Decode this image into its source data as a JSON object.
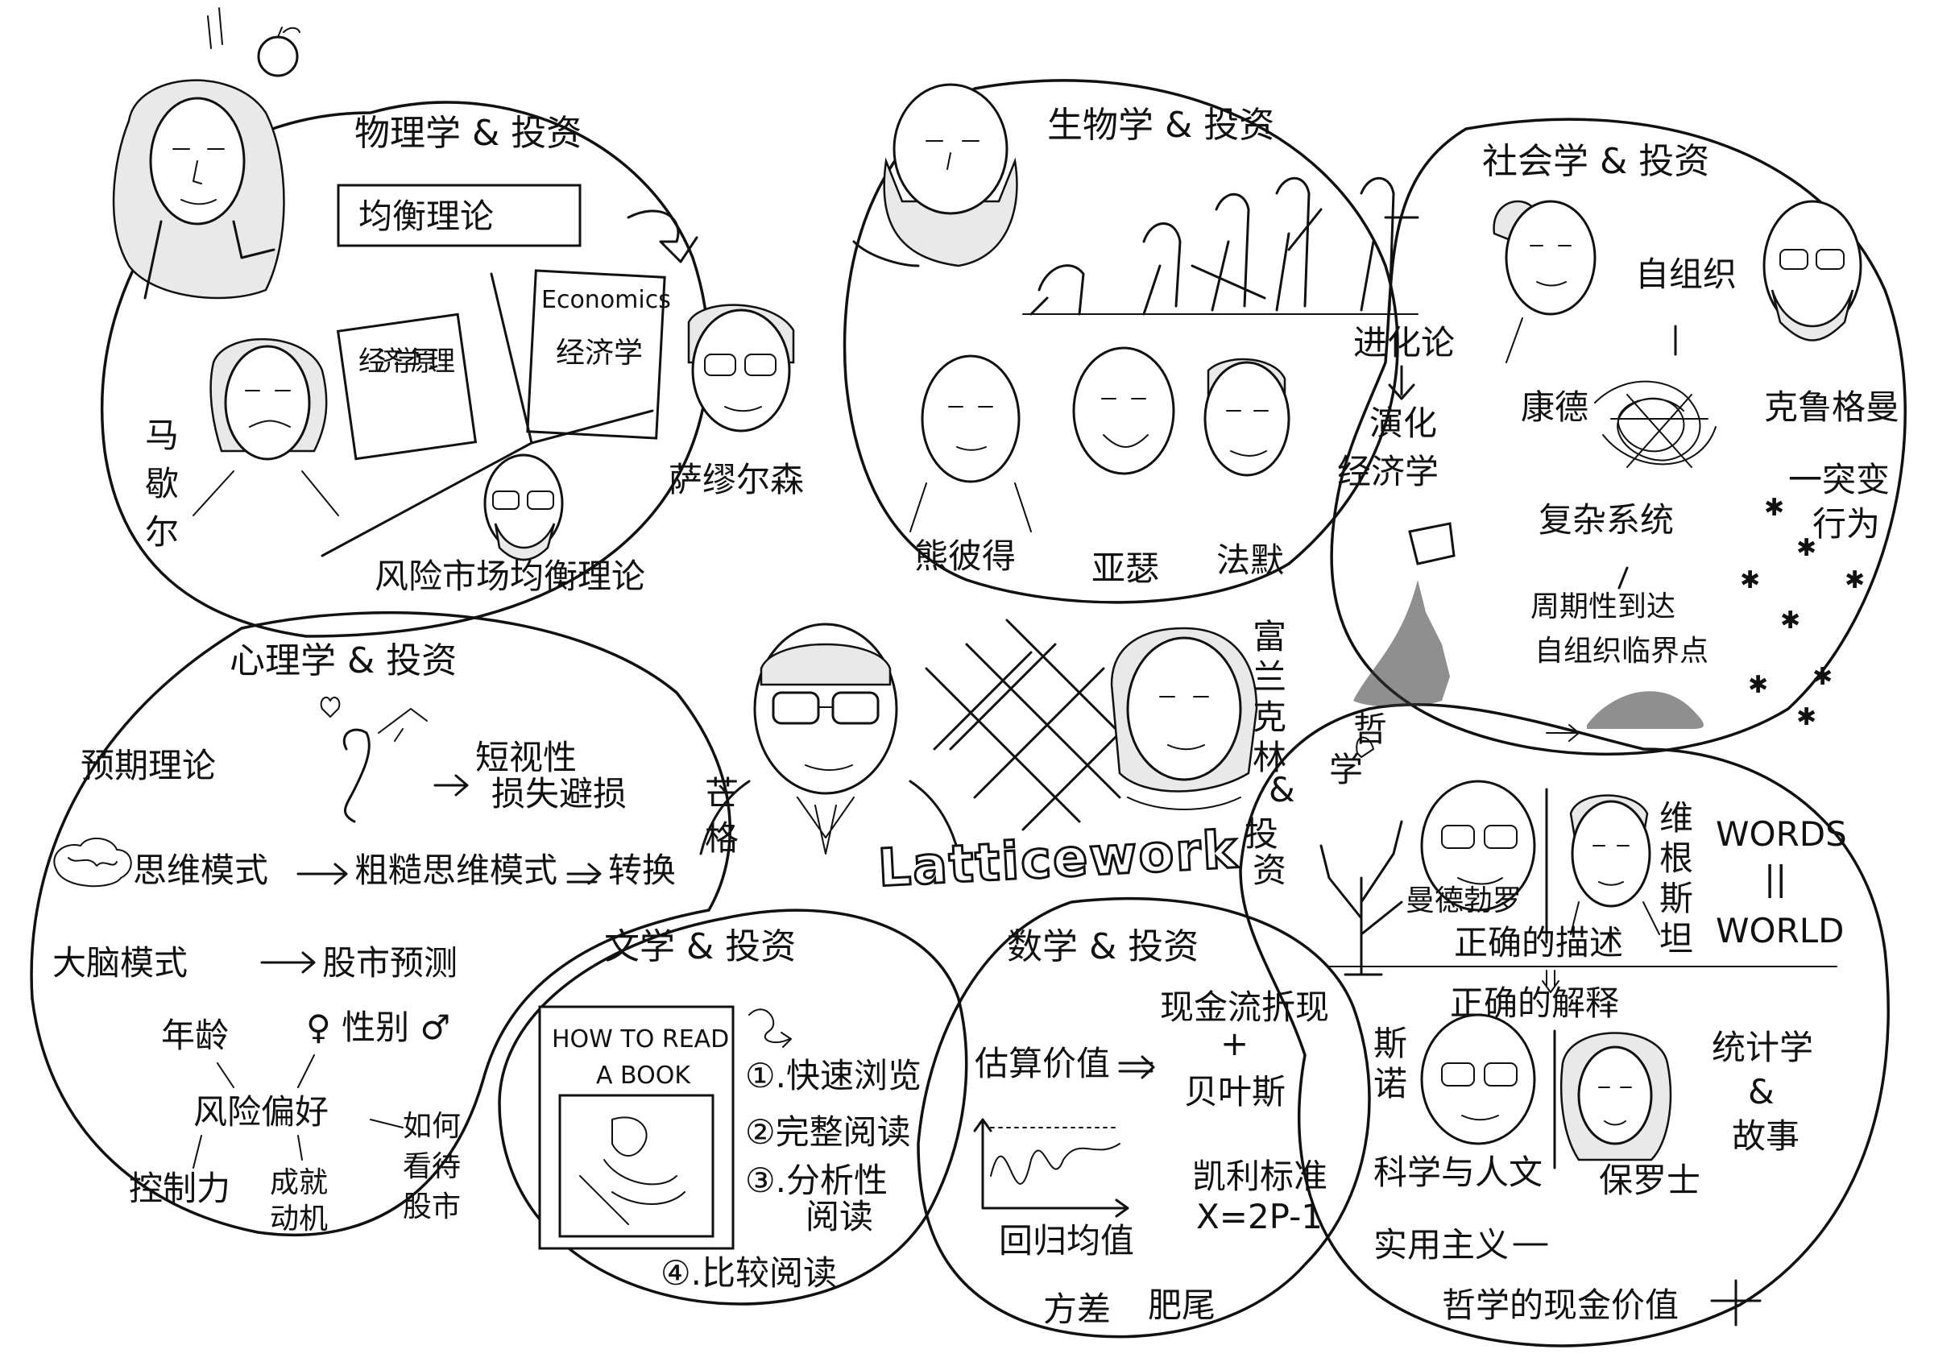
{
  "physics": {
    "title": "物理学 & 投资",
    "equilibrium": "均衡理论",
    "book1": "经济学原理",
    "book2_en": "Economics",
    "book2_cn": "经济学",
    "person_marshall": "马歇尔",
    "person_samuelson": "萨缪尔森",
    "capm": "风险市场均衡理论"
  },
  "biology": {
    "title": "生物学 & 投资",
    "evolution": "进化论",
    "evo_econ": "演化经济学",
    "people": [
      "熊彼得",
      "亚瑟",
      "法默"
    ]
  },
  "sociology": {
    "title": "社会学 & 投资",
    "self_org": "自组织",
    "complex": "复杂系统",
    "critical": "周期性到达自组织临界点",
    "emergent": "突变行为",
    "kant": "康德",
    "krugman": "克鲁格曼"
  },
  "psychology": {
    "title": "心理学 & 投资",
    "prospect": "预期理论",
    "myopia": "短视性",
    "loss": "损失避损",
    "mental": "思维模式",
    "coarse": "粗糙思维模式",
    "transform": "转换",
    "bigbrain": "大脑模式",
    "forecast": "股市预测",
    "age": "年龄",
    "gender": "性别",
    "risk": "风险偏好",
    "control": "控制力",
    "motive": "成就动机",
    "view": "如何看待股市"
  },
  "center": {
    "munger": "芒格",
    "franklin": "富兰克林",
    "latticework": "Latticework"
  },
  "literature": {
    "title": "文学 & 投资",
    "book_line1": "HOW TO READ",
    "book_line2": "A BOOK",
    "steps": [
      "①.快速浏览",
      "②完整阅读",
      "③.分析性阅读",
      "④.比较阅读"
    ]
  },
  "math": {
    "title": "数学 & 投资",
    "estimate": "估算价值",
    "dcf": "现金流折现",
    "plus": "+",
    "bayes": "贝叶斯",
    "kelly": "凯利标准",
    "kelly_formula": "X=2P-1",
    "regression": "回归均值",
    "variance": "方差",
    "fat_tail": "肥尾"
  },
  "philosophy": {
    "title": "哲学 & 投资",
    "mandelbrot": "曼德勃罗",
    "wittgenstein": "维根斯坦",
    "words": "WORDS",
    "equals": "||",
    "world": "WORLD",
    "correct_desc": "正确的描述",
    "correct_expl": "正确的解释",
    "snow": "斯诺",
    "science": "科学与人文",
    "paulos": "保罗士",
    "stats": "统计学&故事",
    "pragmatism": "实用主义",
    "cash": "哲学的现金价值"
  }
}
